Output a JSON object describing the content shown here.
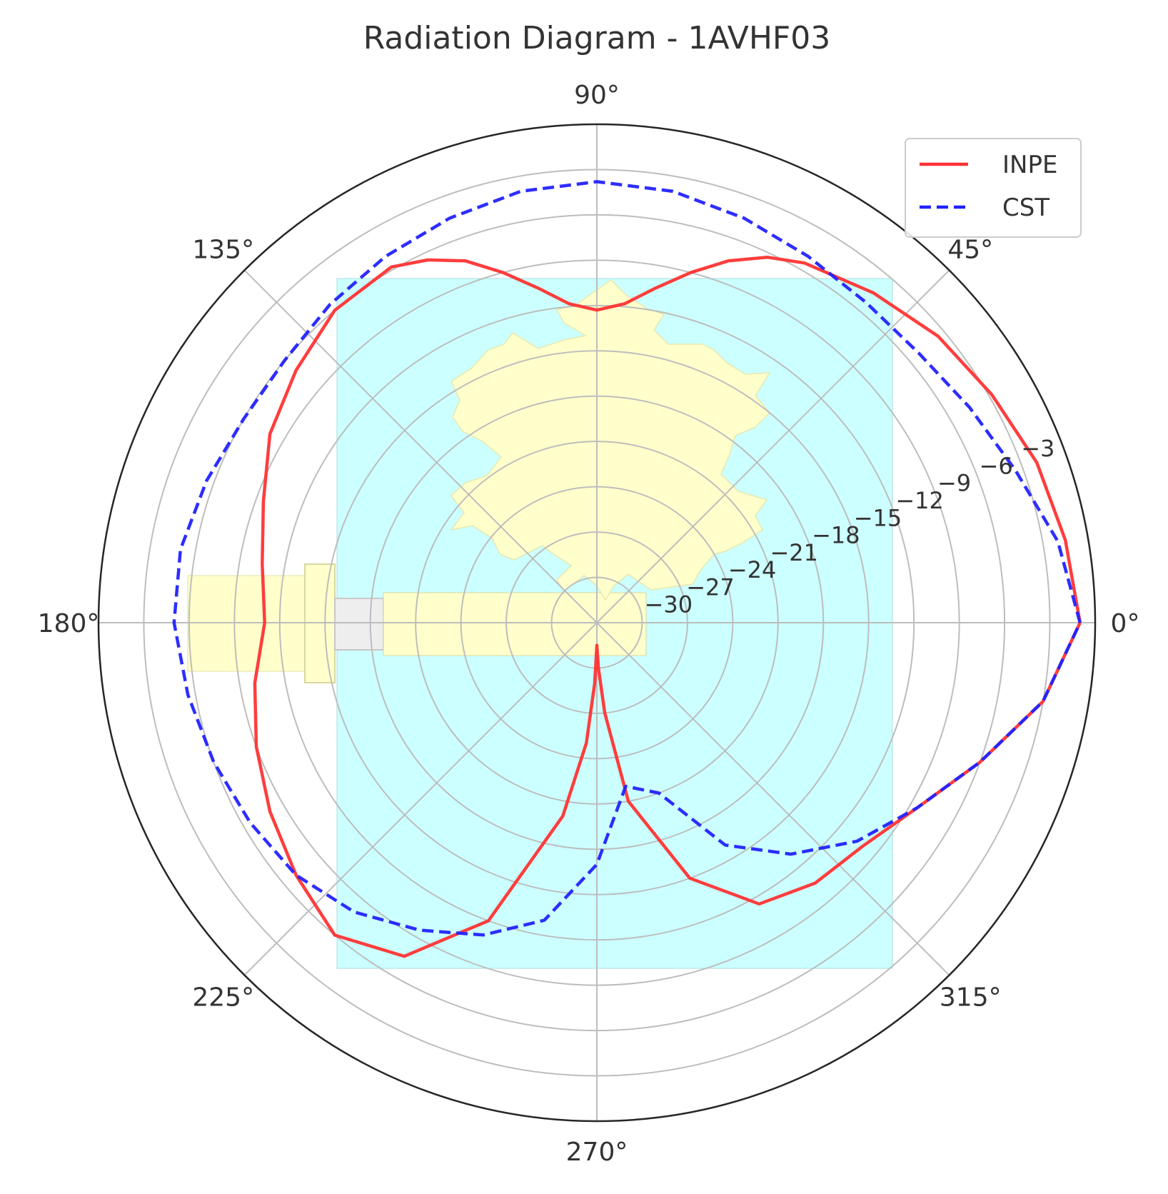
{
  "chart_data": {
    "type": "polar-line",
    "title": "Radiation Diagram - 1AVHF03",
    "angle_unit": "deg",
    "angle_ticks": [
      0,
      45,
      90,
      135,
      180,
      225,
      270,
      315
    ],
    "angle_tick_labels": [
      "0°",
      "45°",
      "90°",
      "135°",
      "180°",
      "225°",
      "270°",
      "315°"
    ],
    "r_ticks": [
      -30,
      -27,
      -24,
      -21,
      -18,
      -15,
      -12,
      -9,
      -6,
      -3
    ],
    "r_tick_labels": [
      "−30",
      "−27",
      "−24",
      "−21",
      "−18",
      "−15",
      "−12",
      "−9",
      "−6",
      "−3"
    ],
    "r_label_angle_deg": 22.5,
    "rlim": [
      -33,
      0
    ],
    "grid": true,
    "legend_position": "top-right",
    "series": [
      {
        "name": "INPE",
        "color": "#ff3333",
        "style": "solid",
        "theta": [
          0,
          10,
          20,
          30,
          40,
          50,
          60,
          65,
          70,
          75,
          80,
          85,
          90,
          95,
          100,
          105,
          110,
          115,
          120,
          130,
          140,
          150,
          160,
          170,
          180,
          190,
          200,
          210,
          220,
          230,
          240,
          250,
          260,
          265,
          268,
          270,
          272,
          275,
          280,
          290,
          300,
          310,
          320,
          330,
          340,
          350,
          360
        ],
        "r": [
          -1.0,
          -1.5,
          -2.0,
          -2.8,
          -3.5,
          -4.5,
          -5.5,
          -6.3,
          -7.5,
          -9.0,
          -10.5,
          -11.8,
          -12.3,
          -11.8,
          -10.5,
          -9.0,
          -7.5,
          -6.5,
          -5.8,
          -6.0,
          -7.0,
          -8.0,
          -9.5,
          -10.5,
          -11.0,
          -10.0,
          -9.0,
          -8.0,
          -7.0,
          -6.0,
          -7.5,
          -12.0,
          -20.0,
          -25.0,
          -29.0,
          -31.5,
          -30.0,
          -27.0,
          -21.0,
          -15.0,
          -11.5,
          -10.5,
          -10.0,
          -8.5,
          -6.0,
          -3.0,
          -1.0
        ]
      },
      {
        "name": "CST",
        "color": "#2222ff",
        "style": "dashed",
        "theta": [
          0,
          10,
          20,
          30,
          40,
          50,
          60,
          70,
          80,
          90,
          100,
          110,
          120,
          130,
          140,
          150,
          160,
          170,
          180,
          190,
          200,
          210,
          220,
          230,
          240,
          250,
          260,
          270,
          280,
          290,
          300,
          310,
          320,
          330,
          340,
          350,
          360
        ],
        "r": [
          -1.0,
          -2.0,
          -3.5,
          -4.5,
          -5.2,
          -5.3,
          -5.0,
          -4.5,
          -4.0,
          -3.8,
          -4.0,
          -4.5,
          -5.0,
          -5.5,
          -6.0,
          -6.0,
          -5.5,
          -5.0,
          -5.0,
          -5.5,
          -6.0,
          -6.5,
          -7.0,
          -8.0,
          -9.5,
          -11.0,
          -13.0,
          -17.0,
          -22.0,
          -21.0,
          -16.0,
          -13.0,
          -10.5,
          -8.5,
          -6.0,
          -3.0,
          -1.0
        ]
      }
    ],
    "background_image": {
      "description_icon": "antenna-pcb-icon",
      "substrate_color": "#ccffff",
      "patch_color": "#ffffcc",
      "connector_color": "#eeeeee"
    }
  }
}
